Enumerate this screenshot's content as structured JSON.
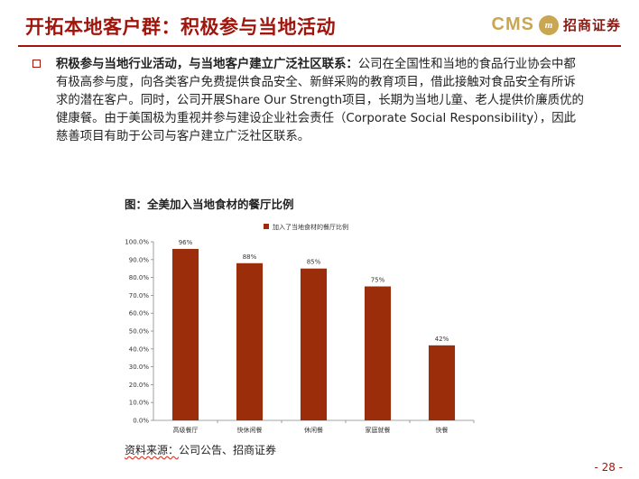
{
  "title": "开拓本地客户群：积极参与当地活动",
  "logo": {
    "cms": "CMS",
    "mark": "m",
    "name": "招商证券"
  },
  "bullet": {
    "lead": "积极参与当地行业活动，与当地客户建立广泛社区联系：",
    "body": "公司在全国性和当地的食品行业协会中都有极高参与度，向各类客户免费提供食品安全、新鲜采购的教育项目，借此接触对食品安全有所诉求的潜在客户。同时，公司开展Share Our Strength项目，长期为当地儿童、老人提供价廉质优的健康餐。由于美国极为重视并参与建设企业社会责任（Corporate Social Responsibility），因此慈善项目有助于公司与客户建立广泛社区联系。"
  },
  "figure_title": "图：全美加入当地食材的餐厅比例",
  "chart_data": {
    "type": "bar",
    "categories": [
      "高级餐厅",
      "快休闲餐",
      "休闲餐",
      "家庭就餐",
      "快餐"
    ],
    "series": [
      {
        "name": "加入了当地食材的餐厅比例",
        "values": [
          96,
          88,
          85,
          75,
          42
        ],
        "color": "#9b2d0b"
      }
    ],
    "data_labels": [
      "96%",
      "88%",
      "85%",
      "75%",
      "42%"
    ],
    "yticks": [
      "0.0%",
      "10.0%",
      "20.0%",
      "30.0%",
      "40.0%",
      "50.0%",
      "60.0%",
      "70.0%",
      "80.0%",
      "90.0%",
      "100.0%"
    ],
    "ylim": [
      0,
      100
    ],
    "grid": false,
    "legend": "top"
  },
  "source": {
    "prefix": "资料来源：",
    "text": "公司公告、招商证券"
  },
  "page_number": "- 28 -"
}
